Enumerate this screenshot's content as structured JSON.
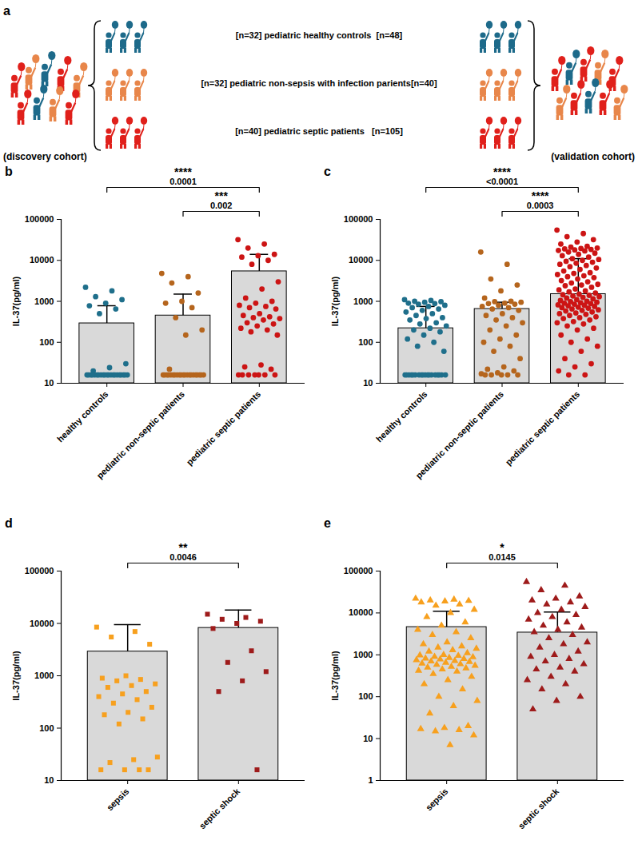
{
  "diagram": {
    "panel": "a",
    "rows": [
      "[n=32] pediatric healthy controls  [n=48]",
      "[n=32] pediatric non-sepsis with infection parients[n=40]",
      "[n=40] pediatric septic patients   [n=105]"
    ],
    "left_label": "(discovery cohort)",
    "right_label": "(validation cohort)"
  },
  "chart_data": [
    {
      "type": "bar",
      "panel": "b",
      "log": "y",
      "ylabel": "IL-37(pg/ml)",
      "categories": [
        "healthy controls",
        "pediatric non-septic patients",
        "pediatric septic patients"
      ],
      "colors": [
        "#1f6f8b",
        "#b5651d",
        "#cc1414"
      ],
      "marker": "circle",
      "values": [
        290,
        450,
        5400
      ],
      "error_upper": [
        780,
        1500,
        14000
      ],
      "points": [
        [
          2200,
          1800,
          1300,
          1100,
          900,
          780,
          650,
          500,
          30,
          24,
          20,
          16,
          16,
          16,
          16,
          16,
          16,
          16,
          16,
          16,
          16,
          16,
          16,
          16,
          16,
          16,
          16,
          16,
          16,
          16,
          16,
          16
        ],
        [
          4800,
          4000,
          2800,
          1600,
          1000,
          900,
          700,
          400,
          200,
          150,
          22,
          16,
          16,
          16,
          16,
          16,
          16,
          16,
          16,
          16,
          16,
          16,
          16,
          16,
          16,
          16,
          16,
          16,
          16,
          16,
          16,
          16
        ],
        [
          32000,
          25000,
          20000,
          14000,
          13000,
          12000,
          10000,
          8000,
          3000,
          2000,
          1200,
          1000,
          900,
          800,
          750,
          700,
          650,
          500,
          450,
          420,
          400,
          380,
          350,
          300,
          280,
          250,
          220,
          200,
          180,
          150,
          28,
          25,
          22,
          16,
          16,
          16,
          16,
          16,
          16,
          16
        ]
      ],
      "ylim": [
        10,
        100000
      ],
      "yticks": [
        10,
        100,
        1000,
        10000,
        100000
      ],
      "annotations": [
        {
          "from": "healthy controls",
          "to": "pediatric septic patients",
          "stars": "****",
          "p": "0.0001"
        },
        {
          "from": "pediatric non-septic patients",
          "to": "pediatric septic patients",
          "stars": "***",
          "p": "0.002"
        }
      ]
    },
    {
      "type": "bar",
      "panel": "c",
      "log": "y",
      "ylabel": "IL-37(pg/ml)",
      "categories": [
        "healthy controls",
        "pediatric non-septic patients",
        "pediatric septic patients"
      ],
      "colors": [
        "#1f6f8b",
        "#b5651d",
        "#cc1414"
      ],
      "marker": "circle",
      "values": [
        220,
        650,
        1500
      ],
      "error_upper": [
        750,
        950,
        11000
      ],
      "points": [
        [
          1100,
          1050,
          1000,
          980,
          950,
          900,
          880,
          850,
          800,
          750,
          700,
          650,
          600,
          550,
          500,
          450,
          400,
          380,
          350,
          300,
          280,
          250,
          220,
          200,
          180,
          150,
          120,
          100,
          80,
          60,
          16,
          16,
          16,
          16,
          16,
          16,
          16,
          16,
          16,
          16,
          16,
          16,
          16,
          16,
          16,
          16,
          16,
          16
        ],
        [
          16000,
          8000,
          3500,
          2500,
          1800,
          1200,
          1000,
          980,
          950,
          900,
          880,
          850,
          800,
          750,
          700,
          650,
          600,
          500,
          450,
          400,
          350,
          300,
          250,
          200,
          150,
          120,
          100,
          80,
          60,
          40,
          25,
          22,
          20,
          18,
          17,
          16,
          16,
          16,
          16,
          16
        ],
        [
          55000,
          45000,
          38000,
          32000,
          28000,
          25000,
          22000,
          21000,
          20000,
          19500,
          19000,
          18500,
          18000,
          17500,
          17000,
          16000,
          15000,
          14000,
          13000,
          12000,
          11000,
          10500,
          10000,
          9500,
          9000,
          8500,
          8000,
          7500,
          7000,
          6500,
          6000,
          5500,
          5000,
          4800,
          4500,
          4200,
          4000,
          3800,
          3500,
          3200,
          3000,
          2800,
          2600,
          2500,
          2400,
          2200,
          2000,
          1900,
          1800,
          1700,
          1600,
          1500,
          1450,
          1400,
          1350,
          1300,
          1250,
          1200,
          1150,
          1100,
          1050,
          1000,
          980,
          950,
          920,
          900,
          880,
          850,
          820,
          800,
          780,
          750,
          720,
          700,
          680,
          650,
          620,
          600,
          580,
          550,
          520,
          500,
          480,
          450,
          420,
          400,
          380,
          350,
          320,
          300,
          280,
          250,
          220,
          200,
          150,
          120,
          100,
          80,
          60,
          40,
          30,
          25,
          20,
          16,
          16
        ]
      ],
      "ylim": [
        10,
        100000
      ],
      "yticks": [
        10,
        100,
        1000,
        10000,
        100000
      ],
      "annotations": [
        {
          "from": "healthy controls",
          "to": "pediatric septic patients",
          "stars": "****",
          "p": "<0.0001"
        },
        {
          "from": "pediatric non-septic patients",
          "to": "pediatric septic patients",
          "stars": "****",
          "p": "0.0003"
        }
      ]
    },
    {
      "type": "bar",
      "panel": "d",
      "log": "y",
      "ylabel": "IL-37(pg/ml)",
      "categories": [
        "sepsis",
        "septic shock"
      ],
      "colors": [
        "#f7a01e",
        "#9e1b1b"
      ],
      "marker": "square",
      "values": [
        2900,
        8200
      ],
      "error_upper": [
        9500,
        18000
      ],
      "points": [
        [
          8500,
          7000,
          5500,
          4000,
          1000,
          900,
          850,
          800,
          700,
          650,
          600,
          500,
          450,
          400,
          350,
          300,
          250,
          200,
          180,
          150,
          120,
          28,
          25,
          22,
          16,
          16,
          16,
          16
        ],
        [
          15000,
          13000,
          12000,
          11000,
          10000,
          8000,
          3000,
          1800,
          1200,
          800,
          500,
          16
        ]
      ],
      "ylim": [
        10,
        100000
      ],
      "yticks": [
        10,
        100,
        1000,
        10000,
        100000
      ],
      "annotations": [
        {
          "from": "sepsis",
          "to": "septic shock",
          "stars": "**",
          "p": "0.0046"
        }
      ]
    },
    {
      "type": "bar",
      "panel": "e",
      "log": "y",
      "ylabel": "IL-37(pg/ml)",
      "categories": [
        "sepsis",
        "septic shock"
      ],
      "colors": [
        "#f7a01e",
        "#9e1b1b"
      ],
      "marker": "triangle",
      "values": [
        4600,
        3400
      ],
      "error_upper": [
        11000,
        10500
      ],
      "points": [
        [
          22000,
          21000,
          20000,
          19500,
          19000,
          18000,
          16000,
          15000,
          12000,
          10000,
          8000,
          6000,
          5000,
          4000,
          3500,
          3000,
          2500,
          2000,
          1800,
          1600,
          1500,
          1400,
          1300,
          1200,
          1100,
          1000,
          980,
          950,
          900,
          880,
          850,
          820,
          800,
          780,
          750,
          720,
          700,
          680,
          650,
          620,
          600,
          580,
          550,
          520,
          500,
          480,
          450,
          420,
          400,
          350,
          300,
          250,
          200,
          150,
          100,
          80,
          60,
          40,
          20,
          18,
          17,
          16,
          15,
          12,
          7
        ],
        [
          55000,
          45000,
          35000,
          25000,
          22000,
          20000,
          18000,
          16000,
          14000,
          12000,
          10000,
          9000,
          8000,
          7000,
          6000,
          5000,
          4500,
          4000,
          3500,
          3000,
          2500,
          2000,
          1800,
          1500,
          1200,
          1000,
          900,
          800,
          700,
          600,
          500,
          450,
          400,
          300,
          250,
          200,
          150,
          100,
          80,
          50
        ]
      ],
      "ylim": [
        1,
        100000
      ],
      "yticks": [
        1,
        10,
        100,
        1000,
        10000,
        100000
      ],
      "annotations": [
        {
          "from": "sepsis",
          "to": "septic shock",
          "stars": "*",
          "p": "0.0145"
        }
      ]
    }
  ]
}
